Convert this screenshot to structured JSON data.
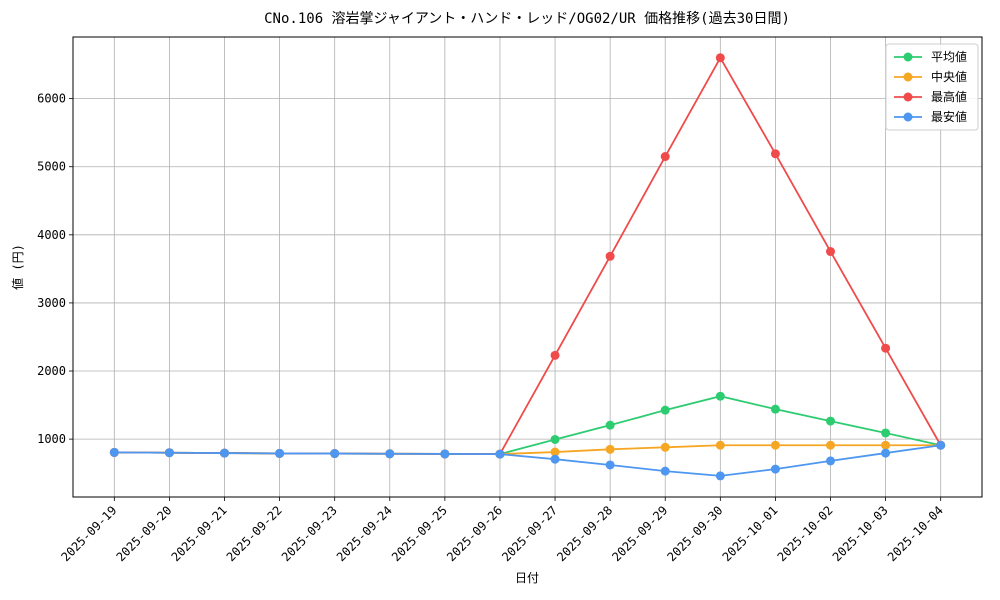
{
  "chart_data": {
    "type": "line",
    "title": "CNo.106 溶岩掌ジャイアント・ハンド・レッド/OG02/UR 価格推移(過去30日間)",
    "x_label": "日付",
    "y_label": "値 (円)",
    "categories": [
      "2025-09-19",
      "2025-09-20",
      "2025-09-21",
      "2025-09-22",
      "2025-09-23",
      "2025-09-24",
      "2025-09-25",
      "2025-09-26",
      "2025-09-27",
      "2025-09-28",
      "2025-09-29",
      "2025-09-30",
      "2025-10-01",
      "2025-10-02",
      "2025-10-03",
      "2025-10-04"
    ],
    "series": [
      {
        "name": "平均値",
        "color": "#2ecc71",
        "values": [
          805,
          800,
          795,
          790,
          788,
          785,
          782,
          780,
          995,
          1205,
          1425,
          1630,
          1440,
          1265,
          1090,
          910
        ]
      },
      {
        "name": "中央値",
        "color": "#f5a623",
        "values": [
          805,
          800,
          795,
          790,
          788,
          785,
          782,
          780,
          810,
          850,
          880,
          910,
          910,
          910,
          910,
          910
        ]
      },
      {
        "name": "最高値",
        "color": "#ef4b4b",
        "values": [
          805,
          800,
          795,
          790,
          788,
          785,
          782,
          780,
          2230,
          3685,
          5150,
          6600,
          5190,
          3755,
          2335,
          910
        ]
      },
      {
        "name": "最安値",
        "color": "#4e97f0",
        "values": [
          805,
          800,
          795,
          790,
          788,
          785,
          782,
          780,
          705,
          620,
          530,
          460,
          560,
          680,
          795,
          910
        ]
      }
    ],
    "ylim": [
      150,
      6905
    ],
    "yticks": [
      1000,
      2000,
      3000,
      4000,
      5000,
      6000
    ],
    "grid": true,
    "legend": "upper-right"
  }
}
